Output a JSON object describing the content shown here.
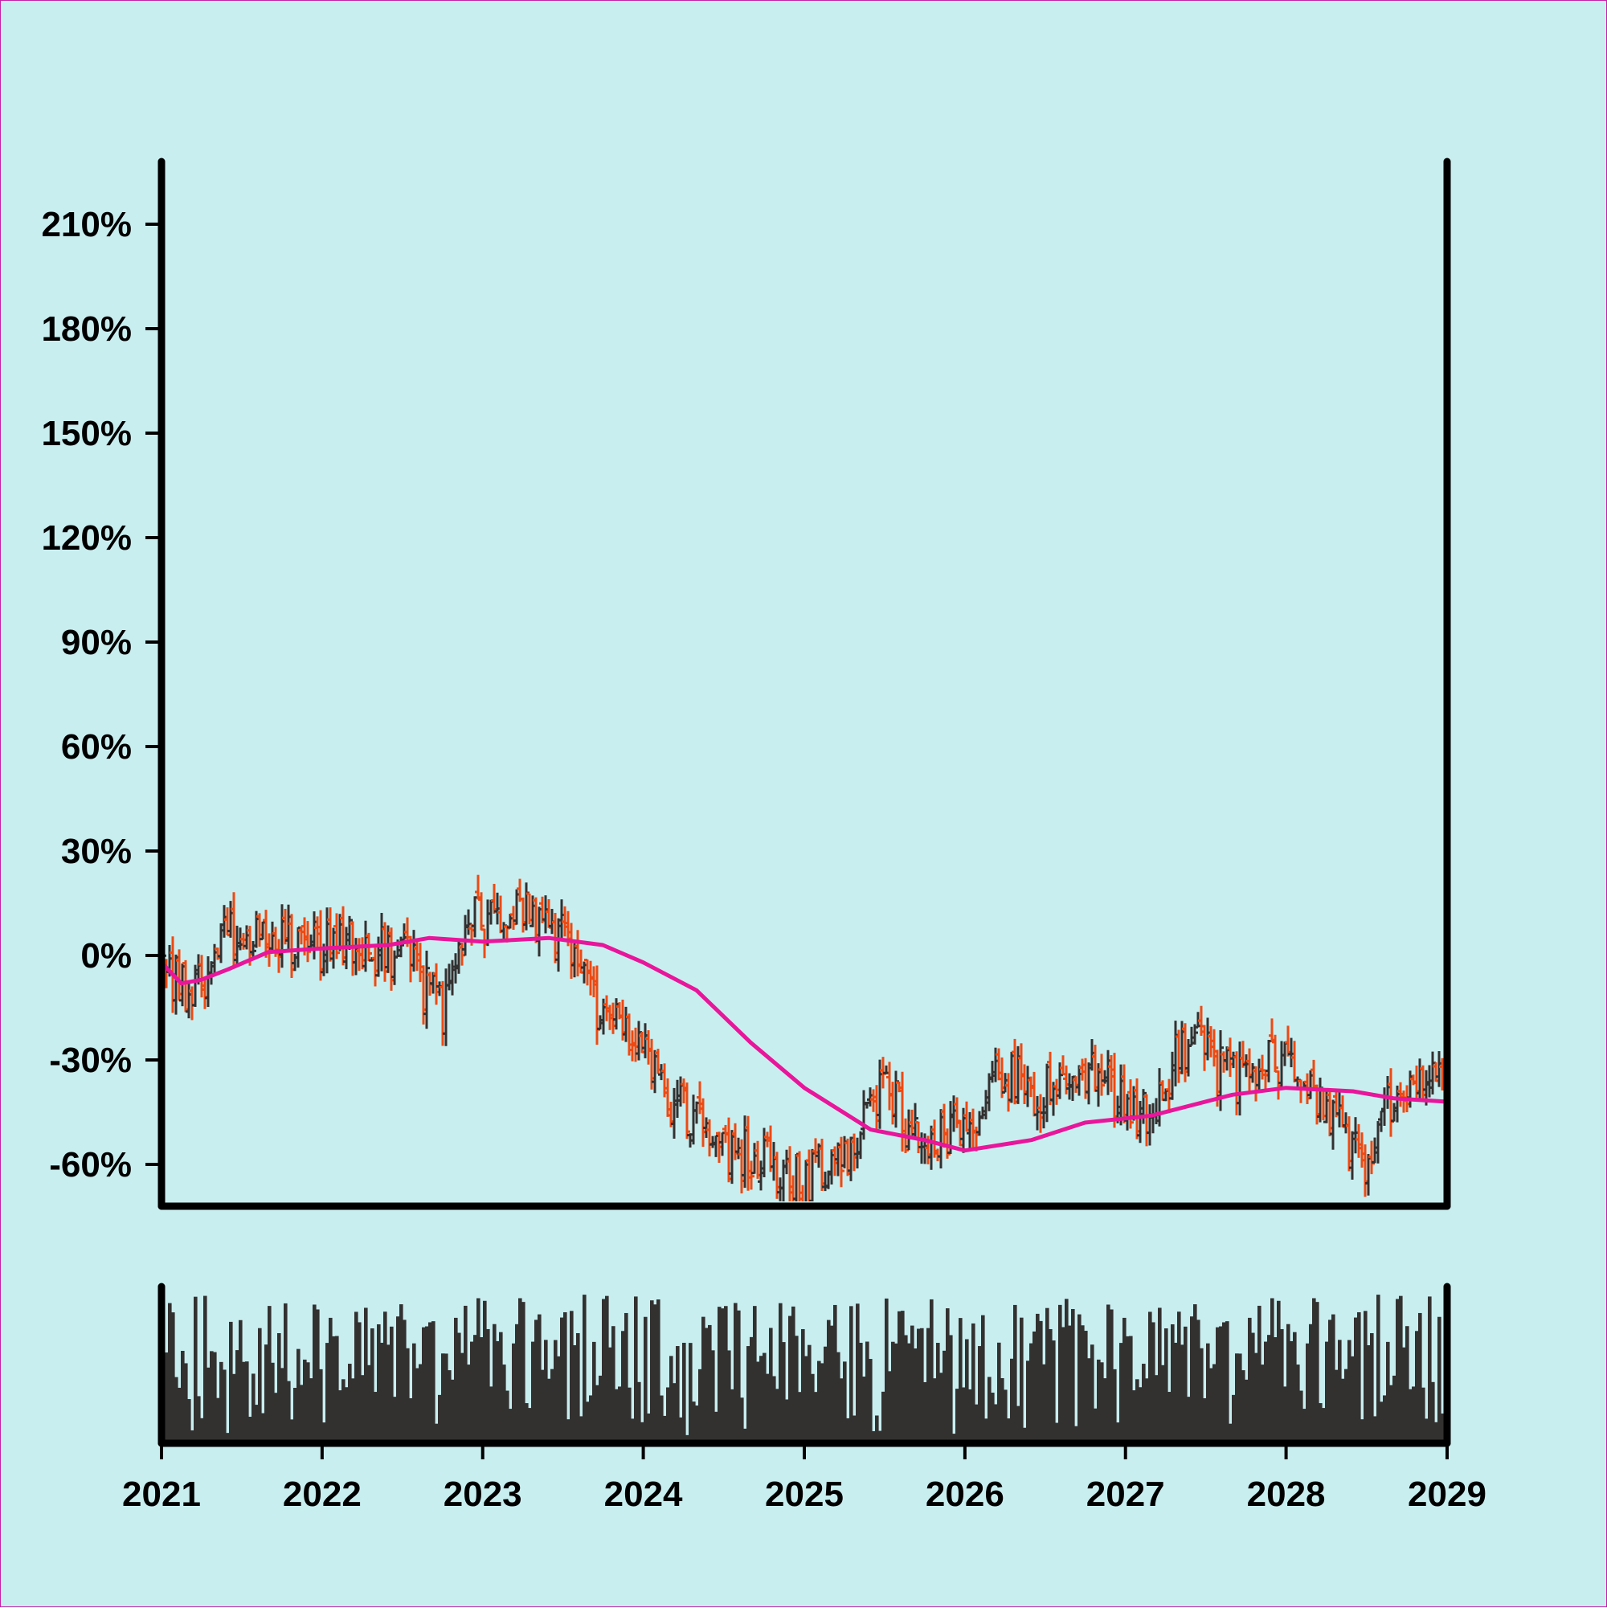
{
  "colors": {
    "background": "#c9eef0",
    "axis": "#000000",
    "up_bar": "#333030",
    "down_bar": "#ee4912",
    "moving_average": "#e8169a",
    "volume": "#333030"
  },
  "chart_data": {
    "type": "ohlc",
    "title": "",
    "xlabel": "",
    "ylabel": "",
    "x_range": [
      "2021-01-01",
      "2029-01-01"
    ],
    "y_range": [
      -0.72,
      2.28
    ],
    "y_ticks": [
      {
        "value": 2.1,
        "label": "210%"
      },
      {
        "value": 1.8,
        "label": "180%"
      },
      {
        "value": 1.5,
        "label": "150%"
      },
      {
        "value": 1.2,
        "label": "120%"
      },
      {
        "value": 0.9,
        "label": "90%"
      },
      {
        "value": 0.6,
        "label": "60%"
      },
      {
        "value": 0.3,
        "label": "30%"
      },
      {
        "value": 0.0,
        "label": "0%"
      },
      {
        "value": -0.3,
        "label": "-30%"
      },
      {
        "value": -0.6,
        "label": "-60%"
      }
    ],
    "x_ticks": [
      {
        "value": "2021-01-01",
        "label": "2021"
      },
      {
        "value": "2022-01-01",
        "label": "2022"
      },
      {
        "value": "2023-01-01",
        "label": "2023"
      },
      {
        "value": "2024-01-01",
        "label": "2024"
      },
      {
        "value": "2025-01-01",
        "label": "2025"
      },
      {
        "value": "2026-01-01",
        "label": "2026"
      },
      {
        "value": "2027-01-01",
        "label": "2027"
      },
      {
        "value": "2028-01-01",
        "label": "2028"
      },
      {
        "value": "2029-01-01",
        "label": "2029"
      }
    ],
    "price_anchors": [
      [
        "2021-01-01",
        -0.02
      ],
      [
        "2021-03-01",
        -0.1
      ],
      [
        "2021-07-01",
        0.08
      ],
      [
        "2021-11-01",
        0.03
      ],
      [
        "2022-03-01",
        0.05
      ],
      [
        "2022-07-01",
        0.0
      ],
      [
        "2022-10-01",
        -0.15
      ],
      [
        "2022-12-01",
        0.1
      ],
      [
        "2023-04-01",
        0.12
      ],
      [
        "2023-07-01",
        0.05
      ],
      [
        "2023-10-01",
        -0.15
      ],
      [
        "2024-01-01",
        -0.3
      ],
      [
        "2024-04-01",
        -0.45
      ],
      [
        "2024-08-01",
        -0.58
      ],
      [
        "2025-01-01",
        -0.65
      ],
      [
        "2025-04-01",
        -0.55
      ],
      [
        "2025-07-01",
        -0.4
      ],
      [
        "2025-10-01",
        -0.55
      ],
      [
        "2026-01-01",
        -0.5
      ],
      [
        "2026-04-01",
        -0.35
      ],
      [
        "2026-08-01",
        -0.4
      ],
      [
        "2026-11-01",
        -0.35
      ],
      [
        "2027-02-01",
        -0.45
      ],
      [
        "2027-06-01",
        -0.25
      ],
      [
        "2027-09-01",
        -0.35
      ],
      [
        "2028-01-01",
        -0.3
      ],
      [
        "2028-04-01",
        -0.45
      ],
      [
        "2028-07-01",
        -0.6
      ],
      [
        "2028-09-01",
        -0.4
      ],
      [
        "2029-01-01",
        -0.38
      ]
    ],
    "moving_average": [
      [
        "2021-01-01",
        -0.02
      ],
      [
        "2021-02-15",
        -0.08
      ],
      [
        "2021-04-01",
        -0.07
      ],
      [
        "2021-06-01",
        -0.04
      ],
      [
        "2021-09-01",
        0.01
      ],
      [
        "2022-01-01",
        0.02
      ],
      [
        "2022-06-01",
        0.03
      ],
      [
        "2022-09-01",
        0.05
      ],
      [
        "2023-01-01",
        0.04
      ],
      [
        "2023-06-01",
        0.05
      ],
      [
        "2023-10-01",
        0.03
      ],
      [
        "2024-01-01",
        -0.02
      ],
      [
        "2024-05-01",
        -0.1
      ],
      [
        "2024-09-01",
        -0.25
      ],
      [
        "2025-01-01",
        -0.38
      ],
      [
        "2025-06-01",
        -0.5
      ],
      [
        "2025-10-01",
        -0.53
      ],
      [
        "2026-01-01",
        -0.56
      ],
      [
        "2026-06-01",
        -0.53
      ],
      [
        "2026-10-01",
        -0.48
      ],
      [
        "2027-03-01",
        -0.46
      ],
      [
        "2027-09-01",
        -0.4
      ],
      [
        "2028-01-01",
        -0.38
      ],
      [
        "2028-06-01",
        -0.39
      ],
      [
        "2028-09-01",
        -0.41
      ],
      [
        "2029-01-01",
        -0.42
      ]
    ],
    "bar_count": 400,
    "volume_panel": true
  }
}
